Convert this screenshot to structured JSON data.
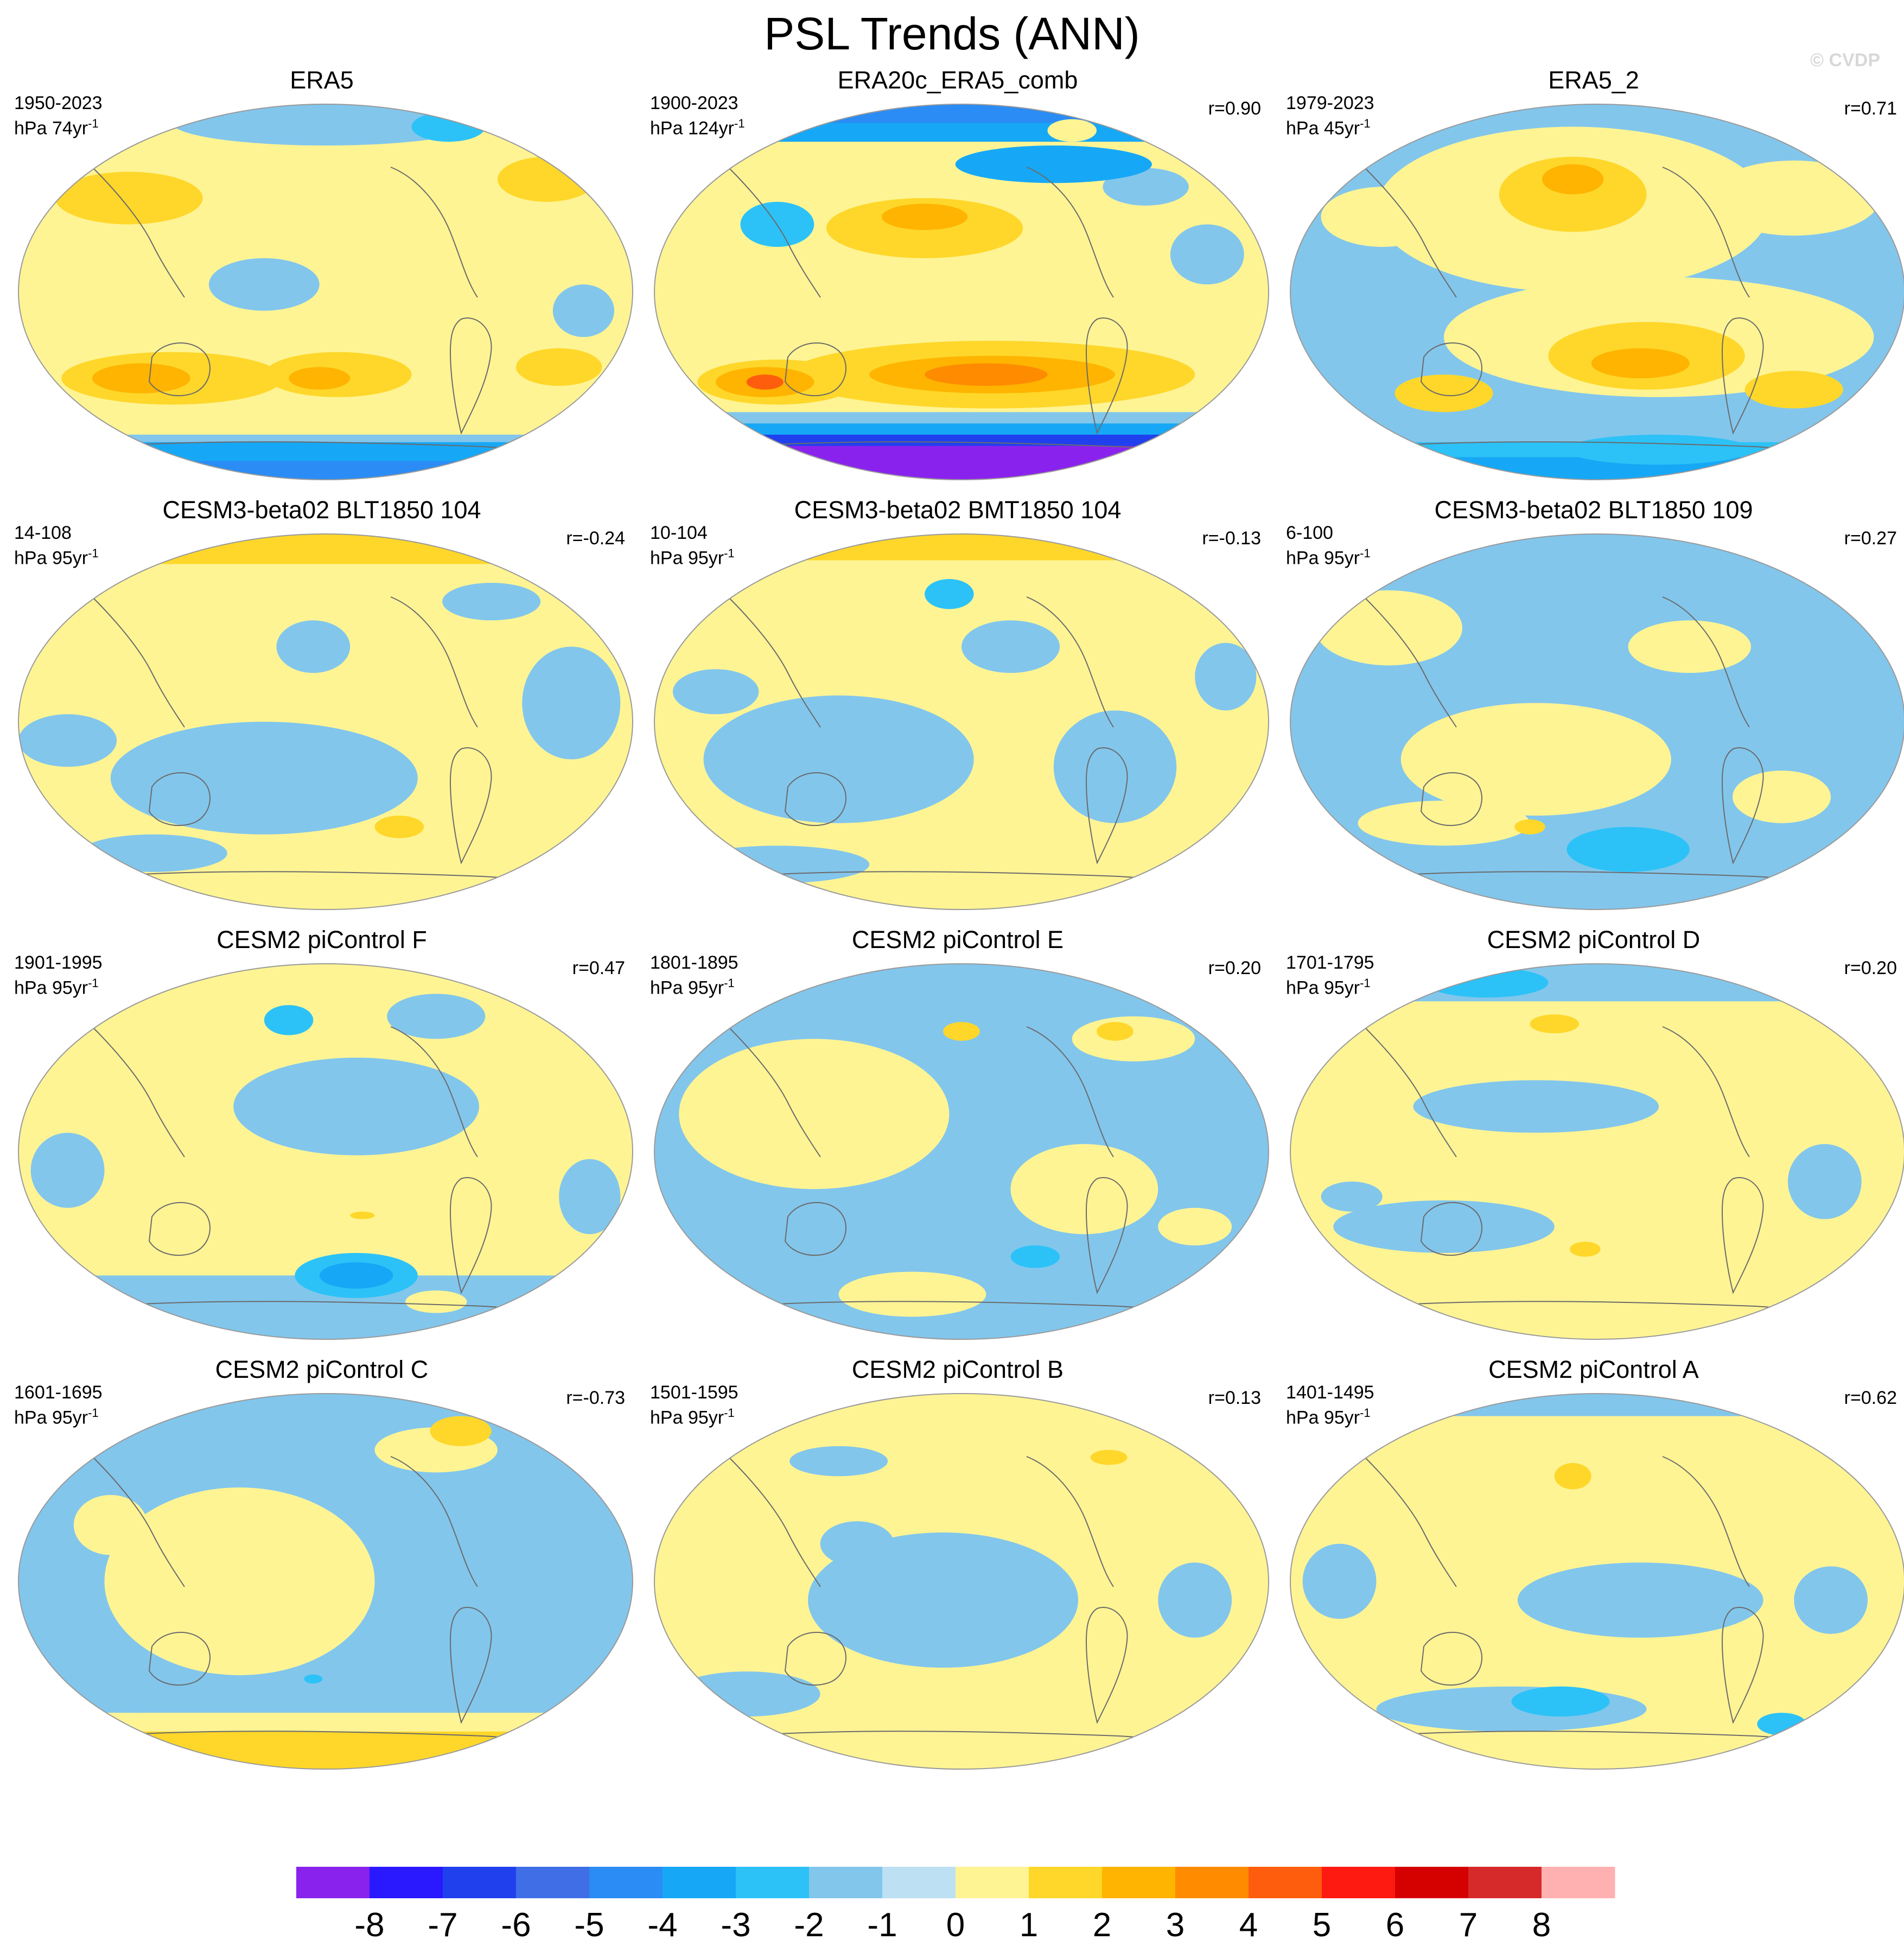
{
  "page": {
    "title": "PSL Trends (ANN)",
    "watermark": "© CVDP"
  },
  "chart_data": {
    "type": "map-grid",
    "projection": "Robinson (Pacific-centered)",
    "variable": "PSL",
    "season": "ANN",
    "colorbar": {
      "levels": [
        -8,
        -7,
        -6,
        -5,
        -4,
        -3,
        -2,
        -1,
        0,
        1,
        2,
        3,
        4,
        5,
        6,
        7,
        8
      ],
      "colors": [
        "#8a22ee",
        "#2a18ff",
        "#2040ee",
        "#3f6ee6",
        "#2b8cf5",
        "#16a8f6",
        "#2cc2f7",
        "#82c6ec",
        "#bde0f2",
        "#fff494",
        "#fed72a",
        "#feb400",
        "#fe8b00",
        "#fe5d0d",
        "#fe1a10",
        "#d50000",
        "#d62a2a",
        "#ffb1b1"
      ]
    },
    "panels": [
      {
        "title": "ERA5",
        "years": "1950-2023",
        "units": "hPa 74yr",
        "units_sup": "-1",
        "corr": ""
      },
      {
        "title": "ERA20c_ERA5_comb",
        "years": "1900-2023",
        "units": "hPa 124yr",
        "units_sup": "-1",
        "corr": "r=0.90"
      },
      {
        "title": "ERA5_2",
        "years": "1979-2023",
        "units": "hPa 45yr",
        "units_sup": "-1",
        "corr": "r=0.71"
      },
      {
        "title": "CESM3-beta02 BLT1850 104",
        "years": "14-108",
        "units": "hPa 95yr",
        "units_sup": "-1",
        "corr": "r=-0.24"
      },
      {
        "title": "CESM3-beta02 BMT1850 104",
        "years": "10-104",
        "units": "hPa 95yr",
        "units_sup": "-1",
        "corr": "r=-0.13"
      },
      {
        "title": "CESM3-beta02 BLT1850 109",
        "years": "6-100",
        "units": "hPa 95yr",
        "units_sup": "-1",
        "corr": "r=0.27"
      },
      {
        "title": "CESM2 piControl F",
        "years": "1901-1995",
        "units": "hPa 95yr",
        "units_sup": "-1",
        "corr": "r=0.47"
      },
      {
        "title": "CESM2 piControl E",
        "years": "1801-1895",
        "units": "hPa 95yr",
        "units_sup": "-1",
        "corr": "r=0.20"
      },
      {
        "title": "CESM2 piControl D",
        "years": "1701-1795",
        "units": "hPa 95yr",
        "units_sup": "-1",
        "corr": "r=0.20"
      },
      {
        "title": "CESM2 piControl C",
        "years": "1601-1695",
        "units": "hPa 95yr",
        "units_sup": "-1",
        "corr": "r=-0.73"
      },
      {
        "title": "CESM2 piControl B",
        "years": "1501-1595",
        "units": "hPa 95yr",
        "units_sup": "-1",
        "corr": "r=0.13"
      },
      {
        "title": "CESM2 piControl A",
        "years": "1401-1495",
        "units": "hPa 95yr",
        "units_sup": "-1",
        "corr": "r=0.62"
      }
    ]
  }
}
